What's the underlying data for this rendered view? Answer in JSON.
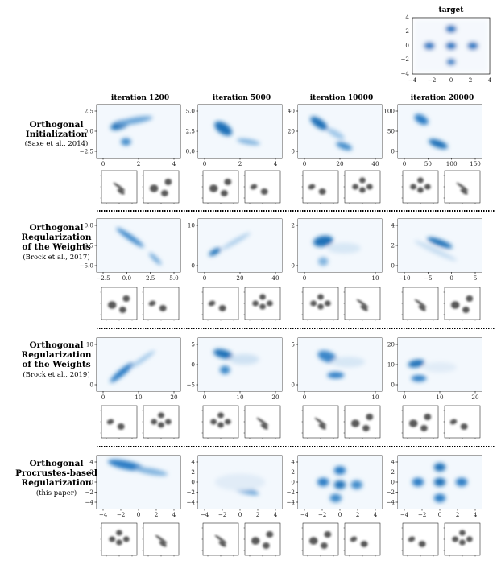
{
  "target": {
    "title": "target",
    "xticks": [
      "−4",
      "−2",
      "0",
      "2",
      "4"
    ],
    "yticks": [
      "4",
      "2",
      "0",
      "−2",
      "−4"
    ]
  },
  "column_titles": [
    "iteration 1200",
    "iteration 5000",
    "iteration 10000",
    "iteration 20000"
  ],
  "rows": [
    {
      "label_lines": [
        "Orthogonal",
        "Initialization"
      ],
      "citation": "(Saxe et al., 2014)",
      "plots": [
        {
          "xticks": [
            "0",
            "2",
            "4"
          ],
          "yticks": [
            "2.5",
            "0.0",
            "−2.5"
          ]
        },
        {
          "xticks": [
            "0",
            "2",
            "4"
          ],
          "yticks": [
            "5.0",
            "2.5",
            "0.0"
          ]
        },
        {
          "xticks": [
            "0",
            "20",
            "40"
          ],
          "yticks": [
            "40",
            "20",
            "0"
          ]
        },
        {
          "xticks": [
            "0",
            "50",
            "100",
            "150"
          ],
          "yticks": [
            "100",
            "50",
            "0"
          ]
        }
      ]
    },
    {
      "label_lines": [
        "Orthogonal",
        "Regularization",
        "of the Weights"
      ],
      "citation": "(Brock et al., 2017)",
      "plots": [
        {
          "xticks": [
            "−2.5",
            "0.0",
            "2.5",
            "5.0"
          ],
          "yticks": [
            "0.0",
            "−2.5",
            "−5.0"
          ]
        },
        {
          "xticks": [
            "0",
            "20",
            "40"
          ],
          "yticks": [
            "10",
            "0"
          ]
        },
        {
          "xticks": [
            "0",
            "10"
          ],
          "yticks": [
            "2",
            "0"
          ]
        },
        {
          "xticks": [
            "−10",
            "−5",
            "0",
            "5"
          ],
          "yticks": [
            "4",
            "2",
            "0"
          ]
        }
      ]
    },
    {
      "label_lines": [
        "Orthogonal",
        "Regularization",
        "of the Weights"
      ],
      "citation": "(Brock et al., 2019)",
      "plots": [
        {
          "xticks": [
            "0",
            "10",
            "20"
          ],
          "yticks": [
            "10",
            "0"
          ]
        },
        {
          "xticks": [
            "0",
            "10",
            "20"
          ],
          "yticks": [
            "5",
            "0",
            "−5"
          ]
        },
        {
          "xticks": [
            "0",
            "10"
          ],
          "yticks": [
            "5",
            "0"
          ]
        },
        {
          "xticks": [
            "0",
            "10",
            "20"
          ],
          "yticks": [
            "20",
            "10",
            "0"
          ]
        }
      ]
    },
    {
      "label_lines": [
        "Orthogonal",
        "Procrustes-based",
        "Regularization"
      ],
      "citation": "(this paper)",
      "plots": [
        {
          "xticks": [
            "−4",
            "−2",
            "0",
            "2",
            "4"
          ],
          "yticks": [
            "4",
            "2",
            "0",
            "−2",
            "−4"
          ]
        },
        {
          "xticks": [
            "−4",
            "−2",
            "0",
            "2",
            "4"
          ],
          "yticks": [
            "4",
            "2",
            "0",
            "−2",
            "−4"
          ]
        },
        {
          "xticks": [
            "−4",
            "−2",
            "0",
            "2",
            "4"
          ],
          "yticks": [
            "4",
            "2",
            "0",
            "−2",
            "−4"
          ]
        },
        {
          "xticks": [
            "−4",
            "−2",
            "0",
            "2",
            "4"
          ],
          "yticks": [
            "4",
            "2",
            "0",
            "−2",
            "−4"
          ]
        }
      ]
    }
  ]
}
